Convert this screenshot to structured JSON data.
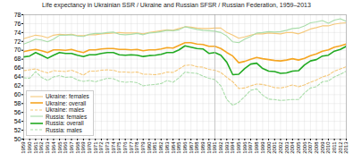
{
  "chart_data": {
    "type": "line",
    "title": "Life expectancy in Ukrainian SSR / Ukraine and Russian SFSR / Russian Federation, 1959–2013",
    "x": [
      1959,
      1960,
      1961,
      1962,
      1963,
      1964,
      1965,
      1966,
      1967,
      1968,
      1969,
      1970,
      1971,
      1972,
      1973,
      1974,
      1975,
      1976,
      1977,
      1978,
      1979,
      1980,
      1981,
      1982,
      1983,
      1984,
      1985,
      1986,
      1987,
      1988,
      1989,
      1990,
      1991,
      1992,
      1993,
      1994,
      1995,
      1996,
      1997,
      1998,
      1999,
      2000,
      2001,
      2002,
      2003,
      2004,
      2005,
      2006,
      2007,
      2008,
      2009,
      2010,
      2011,
      2012,
      2013
    ],
    "series": [
      {
        "name": "Ukraine: females",
        "color": "#f5c87a",
        "line_style": "solid",
        "values": [
          72.6,
          73.0,
          73.4,
          73.2,
          72.8,
          73.4,
          73.6,
          73.5,
          73.6,
          73.3,
          73.3,
          73.5,
          73.5,
          73.7,
          73.8,
          73.9,
          74.0,
          73.9,
          73.9,
          73.9,
          73.7,
          74.0,
          74.2,
          74.4,
          74.6,
          74.5,
          74.9,
          75.3,
          75.2,
          75.0,
          74.9,
          74.9,
          75.0,
          75.0,
          74.0,
          73.4,
          72.7,
          73.0,
          73.4,
          73.7,
          73.7,
          73.9,
          73.8,
          73.7,
          74.0,
          74.0,
          73.7,
          74.2,
          74.8,
          75.1,
          75.5,
          75.5,
          75.9,
          76.1,
          76.2
        ]
      },
      {
        "name": "Ukraine: overall",
        "color": "#f5a623",
        "line_style": "solid",
        "values": [
          69.7,
          70.0,
          70.2,
          69.9,
          69.5,
          70.1,
          70.1,
          70.0,
          70.2,
          69.8,
          69.5,
          70.1,
          70.1,
          70.3,
          70.4,
          70.4,
          70.2,
          70.2,
          70.1,
          70.2,
          69.9,
          70.1,
          70.1,
          70.3,
          70.6,
          70.5,
          71.1,
          71.7,
          71.7,
          71.4,
          71.3,
          70.9,
          70.9,
          70.4,
          69.5,
          68.7,
          67.2,
          67.5,
          68.0,
          68.4,
          68.1,
          67.9,
          67.7,
          67.6,
          67.8,
          68.1,
          67.8,
          68.2,
          68.8,
          69.2,
          69.8,
          70.1,
          70.7,
          71.0,
          71.4
        ]
      },
      {
        "name": "Ukraine: males",
        "color": "#f5c87a",
        "line_style": "dashed",
        "values": [
          65.4,
          65.6,
          65.8,
          65.3,
          64.9,
          65.4,
          65.3,
          65.2,
          65.5,
          65.0,
          64.4,
          65.3,
          65.3,
          65.5,
          65.6,
          65.5,
          65.1,
          65.1,
          65.0,
          65.1,
          64.6,
          64.6,
          64.5,
          64.7,
          65.1,
          65.0,
          65.8,
          66.6,
          66.7,
          66.3,
          66.2,
          65.7,
          65.5,
          65.0,
          63.9,
          62.9,
          61.4,
          61.5,
          62.0,
          62.4,
          62.3,
          62.0,
          61.6,
          61.5,
          61.8,
          62.2,
          61.8,
          62.2,
          62.8,
          63.3,
          64.0,
          64.4,
          65.3,
          65.8,
          66.3
        ]
      },
      {
        "name": "Russia: females",
        "color": "#aaddaa",
        "line_style": "solid",
        "values": [
          71.4,
          71.9,
          72.5,
          72.3,
          71.9,
          72.5,
          73.4,
          73.4,
          73.5,
          73.2,
          73.1,
          73.6,
          73.8,
          73.8,
          74.0,
          74.1,
          73.6,
          73.5,
          73.6,
          73.8,
          73.5,
          73.9,
          74.0,
          74.2,
          74.5,
          74.4,
          74.6,
          75.3,
          75.0,
          74.7,
          74.5,
          74.4,
          74.3,
          74.0,
          73.2,
          71.9,
          71.7,
          72.5,
          73.1,
          73.9,
          74.0,
          74.2,
          74.1,
          74.2,
          74.5,
          74.9,
          75.0,
          75.5,
          76.2,
          76.4,
          76.7,
          76.1,
          76.8,
          77.1,
          76.5
        ]
      },
      {
        "name": "Russia: overall",
        "color": "#22aa22",
        "line_style": "solid",
        "values": [
          68.5,
          68.7,
          69.5,
          68.9,
          68.2,
          68.9,
          69.5,
          69.3,
          69.3,
          68.9,
          68.6,
          69.0,
          69.0,
          69.3,
          69.5,
          69.5,
          69.0,
          68.9,
          69.0,
          68.9,
          68.6,
          68.8,
          68.9,
          69.1,
          69.5,
          69.5,
          70.1,
          71.0,
          70.7,
          70.4,
          70.3,
          69.3,
          69.5,
          68.9,
          67.3,
          64.5,
          64.6,
          65.9,
          66.9,
          67.1,
          65.9,
          65.3,
          65.2,
          64.8,
          64.9,
          65.3,
          65.4,
          66.7,
          67.6,
          67.9,
          68.7,
          68.9,
          69.8,
          70.2,
          70.9
        ]
      },
      {
        "name": "Russia: males",
        "color": "#aaddaa",
        "line_style": "dashed",
        "values": [
          63.8,
          63.7,
          65.2,
          63.9,
          63.2,
          64.0,
          64.3,
          63.9,
          64.0,
          63.3,
          63.0,
          63.2,
          62.9,
          63.3,
          63.7,
          63.6,
          63.0,
          62.8,
          62.9,
          62.7,
          62.0,
          62.2,
          62.3,
          62.5,
          63.2,
          62.8,
          63.8,
          65.1,
          64.9,
          64.8,
          64.2,
          63.7,
          63.4,
          62.0,
          58.9,
          57.6,
          58.3,
          59.6,
          61.0,
          61.3,
          59.9,
          59.0,
          58.9,
          58.7,
          58.8,
          58.9,
          58.9,
          60.4,
          61.5,
          61.8,
          62.9,
          63.1,
          64.0,
          64.6,
          65.3
        ]
      }
    ],
    "vlines": [
      1991
    ],
    "xlim": [
      1959,
      2013
    ],
    "xticks": [
      1959,
      1960,
      1961,
      1962,
      1963,
      1964,
      1965,
      1966,
      1967,
      1968,
      1969,
      1970,
      1971,
      1972,
      1973,
      1974,
      1975,
      1976,
      1977,
      1978,
      1979,
      1980,
      1981,
      1982,
      1983,
      1984,
      1985,
      1986,
      1987,
      1988,
      1989,
      1990,
      1991,
      1992,
      1993,
      1994,
      1995,
      1996,
      1997,
      1998,
      1999,
      2000,
      2001,
      2002,
      2003,
      2004,
      2005,
      2006,
      2007,
      2008,
      2009,
      2010,
      2011,
      2012,
      2013
    ],
    "ylim": [
      50,
      78
    ],
    "yticks": [
      50,
      52,
      54,
      56,
      58,
      60,
      62,
      64,
      66,
      68,
      70,
      72,
      74,
      76,
      78
    ],
    "grid": true,
    "legend": "lower left"
  }
}
